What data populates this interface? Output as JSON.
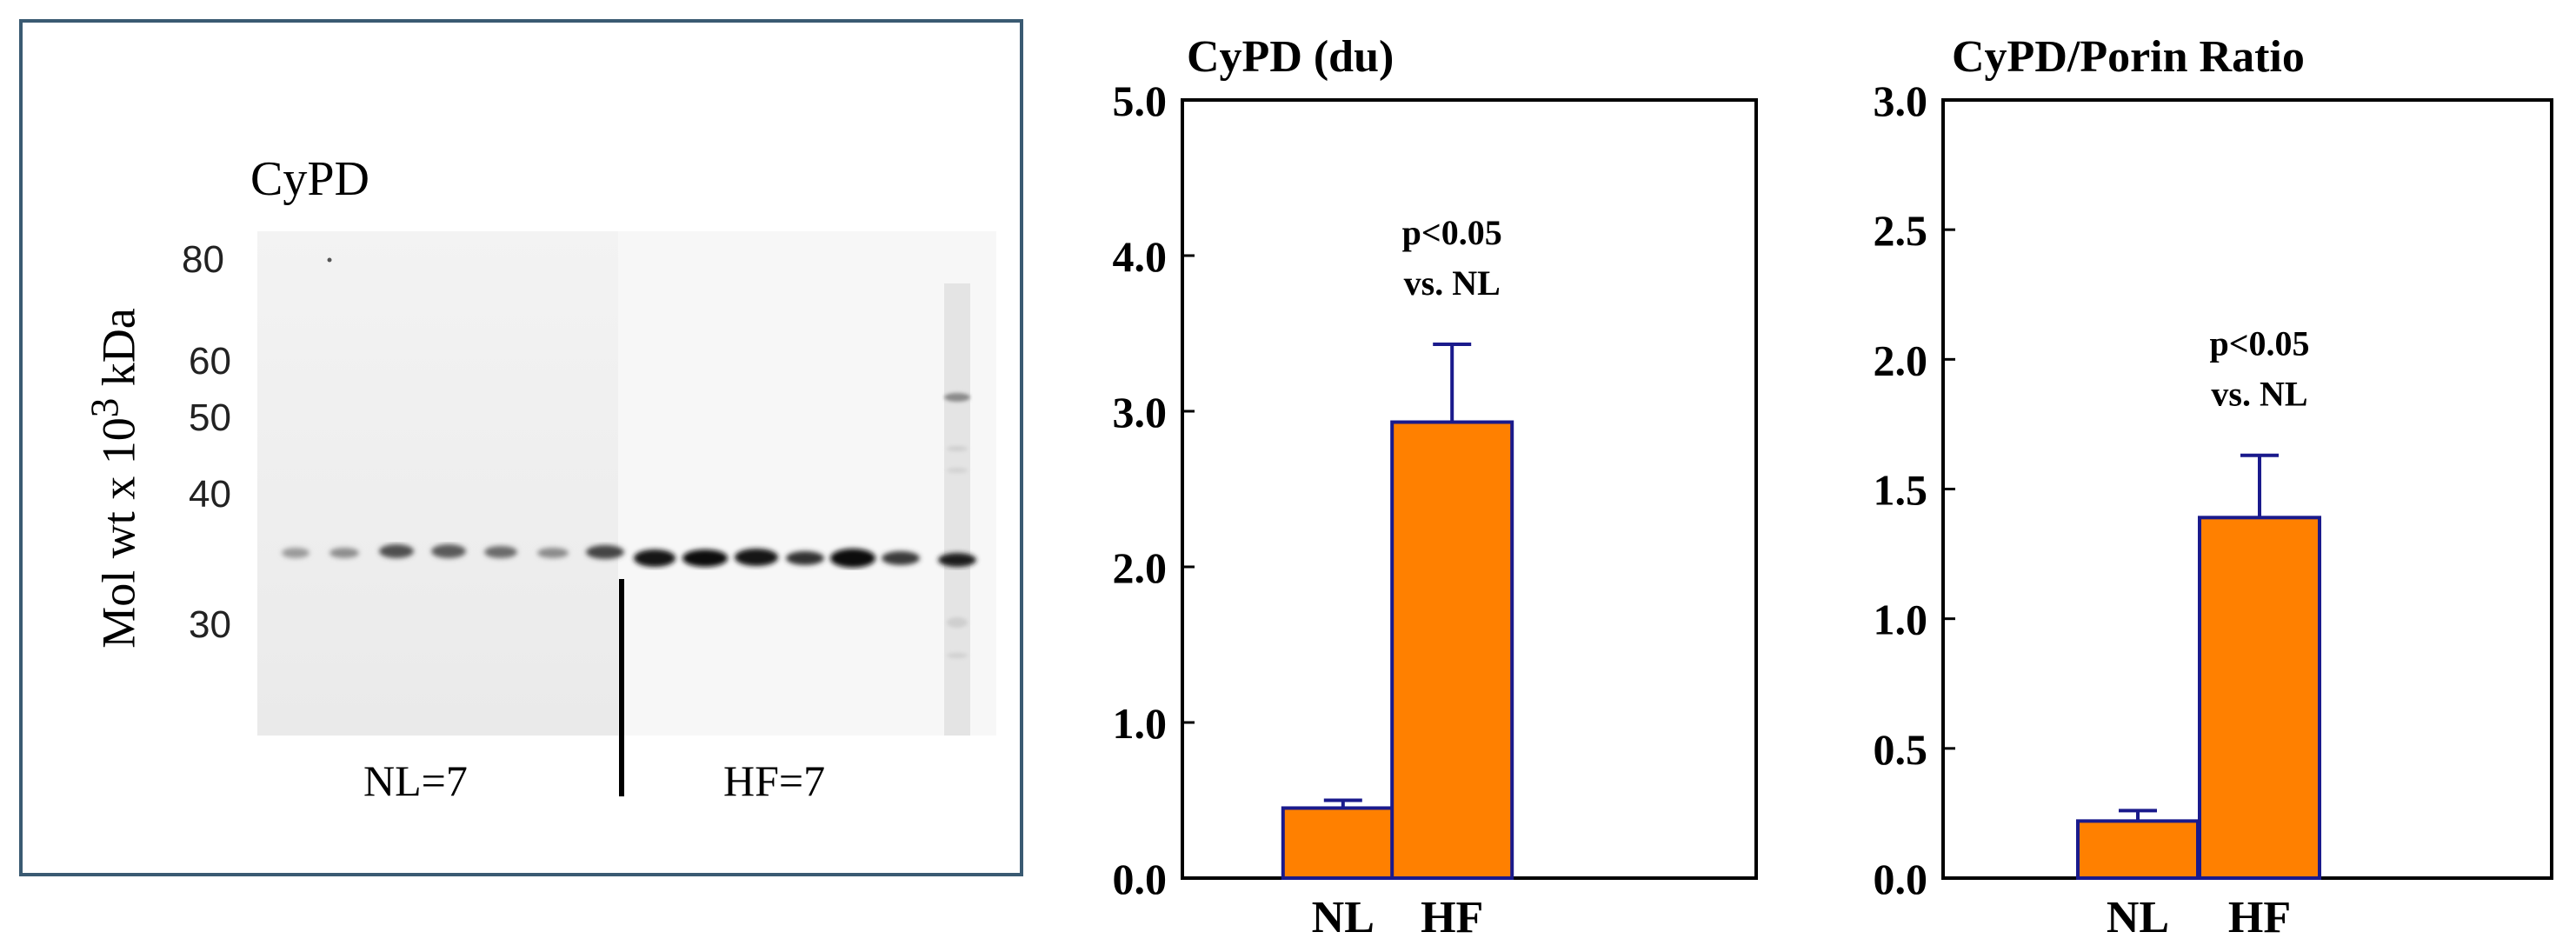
{
  "blot": {
    "title": "CyPD",
    "axis_label": "Mol wt x 10",
    "axis_label_sup": "3",
    "axis_label_unit": " kDa",
    "mw_markers": [
      "80",
      "60",
      "50",
      "40",
      "30"
    ],
    "groups": [
      "NL=7",
      "HF=7"
    ]
  },
  "colors": {
    "bar_fill": "#ff8000",
    "bar_stroke": "#1a1a8c",
    "frame": "#3a5a72"
  },
  "chart_data": [
    {
      "type": "bar",
      "title": "CyPD (du)",
      "categories": [
        "NL",
        "HF"
      ],
      "values": [
        0.45,
        2.93
      ],
      "errors": [
        0.05,
        0.5
      ],
      "ylim": [
        0,
        5
      ],
      "yticks": [
        "0.0",
        "1.0",
        "2.0",
        "3.0",
        "4.0",
        "5.0"
      ],
      "annotation": [
        "p<0.05",
        "vs. NL"
      ]
    },
    {
      "type": "bar",
      "title": "CyPD/Porin Ratio",
      "categories": [
        "NL",
        "HF"
      ],
      "values": [
        0.22,
        1.39
      ],
      "errors": [
        0.04,
        0.24
      ],
      "ylim": [
        0,
        3
      ],
      "yticks": [
        "0.0",
        "0.5",
        "1.0",
        "1.5",
        "2.0",
        "2.5",
        "3.0"
      ],
      "annotation": [
        "p<0.05",
        "vs. NL"
      ]
    }
  ]
}
